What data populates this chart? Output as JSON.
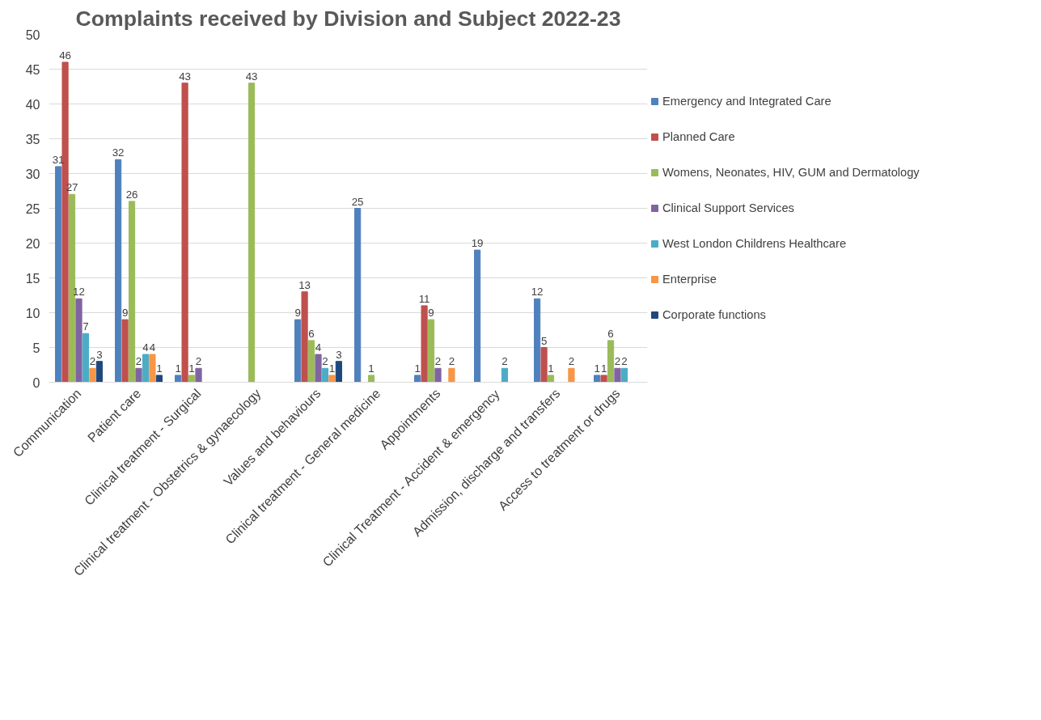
{
  "chart_data": {
    "type": "bar",
    "title": "Complaints received by Division and Subject 2022-23",
    "categories": [
      "Communication",
      "Patient care",
      "Clinical treatment - Surgical",
      "Clinical treatment - Obstetrics & gynaecology",
      "Values and behaviours",
      "Clinical treatment - General medicine",
      "Appointments",
      "Clinical Treatment - Accident & emergency",
      "Admission, discharge and transfers",
      "Access to treatment or drugs"
    ],
    "series": [
      {
        "name": "Emergency and Integrated Care",
        "color": "#4f81bd",
        "values": [
          31,
          32,
          1,
          null,
          9,
          25,
          1,
          19,
          12,
          1
        ]
      },
      {
        "name": "Planned Care",
        "color": "#c0504d",
        "values": [
          46,
          9,
          43,
          null,
          13,
          null,
          11,
          null,
          5,
          1
        ]
      },
      {
        "name": "Womens, Neonates, HIV, GUM and Dermatology",
        "color": "#9bbb59",
        "values": [
          27,
          26,
          1,
          43,
          6,
          1,
          9,
          null,
          1,
          6
        ]
      },
      {
        "name": "Clinical Support Services",
        "color": "#8064a2",
        "values": [
          12,
          2,
          2,
          null,
          4,
          null,
          2,
          null,
          null,
          2
        ]
      },
      {
        "name": "West London Childrens Healthcare",
        "color": "#4bacc6",
        "values": [
          7,
          4,
          null,
          null,
          2,
          null,
          null,
          2,
          null,
          2
        ]
      },
      {
        "name": "Enterprise",
        "color": "#f79646",
        "values": [
          2,
          4,
          null,
          null,
          1,
          null,
          2,
          null,
          2,
          null
        ]
      },
      {
        "name": "Corporate functions",
        "color": "#1f497d",
        "values": [
          3,
          1,
          null,
          null,
          3,
          null,
          null,
          null,
          null,
          null
        ]
      }
    ],
    "ylim": [
      0,
      50
    ],
    "yticks": [
      0,
      5,
      10,
      15,
      20,
      25,
      30,
      35,
      40,
      45,
      50
    ],
    "grid": "y",
    "legend": "right",
    "data_labels": true
  }
}
